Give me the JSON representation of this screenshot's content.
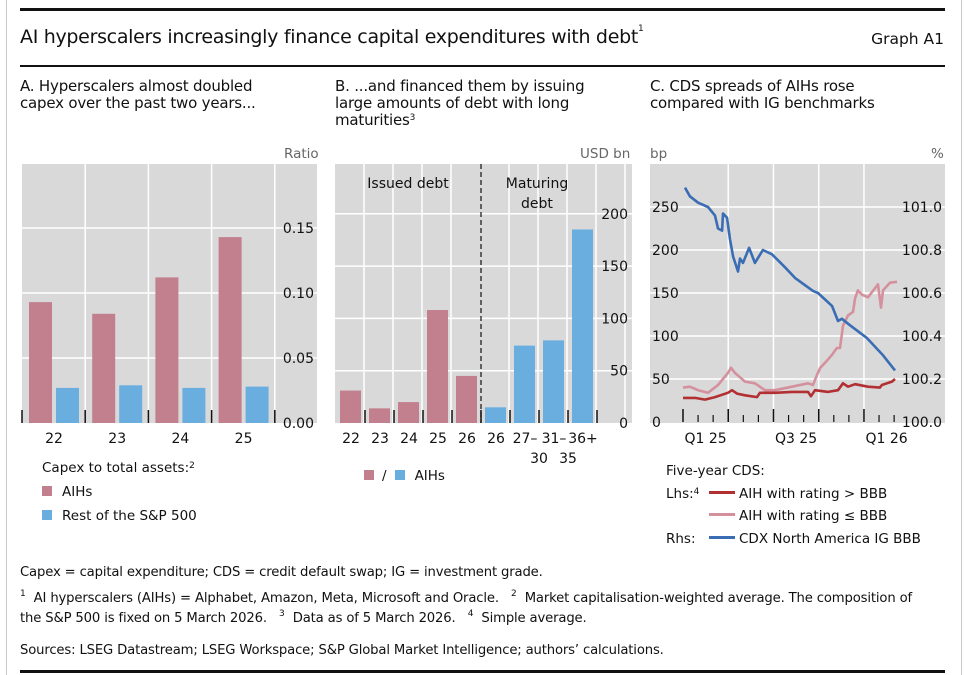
{
  "header": {
    "title": "AI hyperscalers increasingly finance capital expenditures with debt",
    "title_sup": "1",
    "graph_id": "Graph A1"
  },
  "colors": {
    "aih": "#c27f8e",
    "rest": "#6aaee0",
    "aih_above_bbb": "#b22f32",
    "aih_le_bbb": "#d4919d",
    "cdx": "#3a6db4",
    "plot_bg": "#d9d9d9"
  },
  "chart_data": [
    {
      "panel": "A",
      "type": "bar",
      "title_line1": "A. Hyperscalers almost doubled",
      "title_line2": "capex over the past two years...",
      "unit": "Ratio",
      "categories": [
        "22",
        "23",
        "24",
        "25"
      ],
      "series": [
        {
          "name": "AIHs",
          "values": [
            0.093,
            0.084,
            0.112,
            0.143
          ]
        },
        {
          "name": "Rest of the S&P 500",
          "values": [
            0.027,
            0.029,
            0.027,
            0.028
          ]
        }
      ],
      "ylim": [
        0,
        0.2
      ],
      "yticks": [
        "0.00",
        "0.05",
        "0.10",
        "0.15"
      ],
      "ytick_values": [
        0,
        0.05,
        0.1,
        0.15
      ],
      "yaxis_side": "right",
      "grid": true,
      "legend_title": "Capex to total assets:",
      "legend_title_sup": "2",
      "legend_placement": "bottom"
    },
    {
      "panel": "B",
      "type": "bar",
      "title_line1": "B. ...and financed them by issuing",
      "title_line2": "large amounts of debt with long",
      "title_line3": "maturities",
      "title_sup": "3",
      "unit": "USD bn",
      "groups": [
        {
          "label": "Issued debt",
          "color_key": "aih",
          "categories": [
            "22",
            "23",
            "24",
            "25",
            "26"
          ],
          "values": [
            31,
            14,
            20,
            108,
            45
          ]
        },
        {
          "label_line1": "Maturing",
          "label_line2": "debt",
          "color_key": "rest",
          "categories": [
            "26",
            "27–",
            "31–",
            "36+"
          ],
          "categories_line2": [
            "",
            "30",
            "35",
            ""
          ],
          "values": [
            15,
            74,
            79,
            185
          ]
        }
      ],
      "ylim": [
        0,
        250
      ],
      "yticks": [
        "0",
        "50",
        "100",
        "150",
        "200"
      ],
      "ytick_values": [
        0,
        50,
        100,
        150,
        200
      ],
      "yaxis_side": "right",
      "grid": true,
      "legend_sep": "/",
      "legend_label": "AIHs",
      "legend_placement": "bottom"
    },
    {
      "panel": "C",
      "type": "line",
      "title_line1": "C. CDS spreads of AIHs rose",
      "title_line2": "compared with IG benchmarks",
      "left_unit": "bp",
      "right_unit": "%",
      "x_unit": "months since start of Q1 2025",
      "xlim": [
        -0.3,
        15.6
      ],
      "x_major_ticks": [
        0,
        3,
        6,
        9,
        12
      ],
      "x_minor_ticks": [
        1,
        2,
        4,
        5,
        7,
        8,
        10,
        11,
        13,
        14
      ],
      "x_labels": [
        {
          "text": "Q1 25",
          "at": 1.5
        },
        {
          "text": "Q3 25",
          "at": 7.5
        },
        {
          "text": "Q1 26",
          "at": 13.5
        }
      ],
      "left_ylim": [
        0,
        300
      ],
      "left_yticks": [
        "0",
        "50",
        "100",
        "150",
        "200",
        "250"
      ],
      "left_ytick_values": [
        0,
        50,
        100,
        150,
        200,
        250
      ],
      "right_ylim": [
        100.0,
        101.2
      ],
      "right_yticks": [
        "100.0",
        "100.2",
        "100.4",
        "100.6",
        "100.8",
        "101.0"
      ],
      "right_ytick_values": [
        100.0,
        100.2,
        100.4,
        100.6,
        100.8,
        101.0
      ],
      "grid": true,
      "legend_title": "Five-year CDS:",
      "legend_lhs": "Lhs:",
      "legend_lhs_sup": "4",
      "legend_rhs": "Rhs:",
      "legend_placement": "bottom",
      "series": [
        {
          "name": "AIH with rating > BBB",
          "axis": "left",
          "color_key": "aih_above_bbb",
          "points": [
            [
              0,
              28
            ],
            [
              0.8,
              28
            ],
            [
              1.46,
              26
            ],
            [
              2.12,
              29
            ],
            [
              2.98,
              34
            ],
            [
              3.25,
              37
            ],
            [
              3.58,
              33
            ],
            [
              4.11,
              31
            ],
            [
              4.91,
              29
            ],
            [
              5.1,
              34
            ],
            [
              6.1,
              34
            ],
            [
              7.23,
              35
            ],
            [
              8.29,
              35
            ],
            [
              8.49,
              30
            ],
            [
              8.75,
              37
            ],
            [
              9.62,
              35
            ],
            [
              10.28,
              37
            ],
            [
              10.61,
              45
            ],
            [
              10.94,
              41
            ],
            [
              11.41,
              44
            ],
            [
              12.27,
              41
            ],
            [
              13.06,
              40
            ],
            [
              13.19,
              43
            ],
            [
              13.86,
              47
            ],
            [
              14.06,
              50
            ]
          ]
        },
        {
          "name": "AIH with rating ≤ BBB",
          "axis": "left",
          "color_key": "aih_le_bbb",
          "points": [
            [
              0,
              40
            ],
            [
              0.46,
              41
            ],
            [
              1.0,
              37
            ],
            [
              1.66,
              34
            ],
            [
              2.32,
              43
            ],
            [
              2.98,
              57
            ],
            [
              3.18,
              63
            ],
            [
              3.45,
              57
            ],
            [
              4.11,
              47
            ],
            [
              4.77,
              45
            ],
            [
              5.44,
              37
            ],
            [
              6.1,
              37
            ],
            [
              7.23,
              41
            ],
            [
              8.29,
              45
            ],
            [
              8.62,
              43
            ],
            [
              8.89,
              55
            ],
            [
              9.1,
              63
            ],
            [
              9.42,
              69
            ],
            [
              9.88,
              78
            ],
            [
              10.2,
              86
            ],
            [
              10.41,
              86
            ],
            [
              10.61,
              112
            ],
            [
              10.94,
              124
            ],
            [
              11.27,
              128
            ],
            [
              11.41,
              144
            ],
            [
              11.6,
              153
            ],
            [
              11.87,
              148
            ],
            [
              12.27,
              145
            ],
            [
              12.53,
              151
            ],
            [
              12.93,
              160
            ],
            [
              13.13,
              133
            ],
            [
              13.26,
              153
            ],
            [
              13.73,
              162
            ],
            [
              14.19,
              163
            ]
          ]
        },
        {
          "name": "CDX North America IG BBB",
          "axis": "right",
          "color_key": "cdx",
          "points": [
            [
              0.13,
              101.09
            ],
            [
              0.46,
              101.05
            ],
            [
              1.0,
              101.02
            ],
            [
              1.66,
              101.0
            ],
            [
              2.12,
              100.96
            ],
            [
              2.32,
              100.9
            ],
            [
              2.59,
              100.89
            ],
            [
              2.65,
              100.97
            ],
            [
              2.92,
              100.95
            ],
            [
              3.12,
              100.85
            ],
            [
              3.32,
              100.77
            ],
            [
              3.65,
              100.7
            ],
            [
              3.78,
              100.76
            ],
            [
              3.98,
              100.74
            ],
            [
              4.38,
              100.81
            ],
            [
              4.77,
              100.74
            ],
            [
              5.3,
              100.8
            ],
            [
              5.9,
              100.78
            ],
            [
              6.76,
              100.72
            ],
            [
              7.43,
              100.67
            ],
            [
              8.62,
              100.61
            ],
            [
              8.95,
              100.6
            ],
            [
              9.88,
              100.54
            ],
            [
              10.28,
              100.47
            ],
            [
              10.54,
              100.48
            ],
            [
              11.07,
              100.45
            ],
            [
              12.2,
              100.39
            ],
            [
              13.26,
              100.31
            ],
            [
              14.06,
              100.24
            ]
          ]
        }
      ]
    }
  ],
  "footer": {
    "abbrev": "Capex = capital expenditure; CDS = credit default swap; IG = investment grade.",
    "note1_num": "1",
    "note1": "AI hyperscalers (AIHs) = Alphabet, Amazon, Meta, Microsoft and Oracle.",
    "note2_num": "2",
    "note2a": "Market capitalisation-weighted average. The composition of",
    "note2b": "the S&P 500 is fixed on 5 March 2026.",
    "note3_num": "3",
    "note3": "Data as of 5 March 2026.",
    "note4_num": "4",
    "note4": "Simple average.",
    "sources": "Sources: LSEG Datastream; LSEG Workspace; S&P Global Market Intelligence; authors’ calculations."
  }
}
